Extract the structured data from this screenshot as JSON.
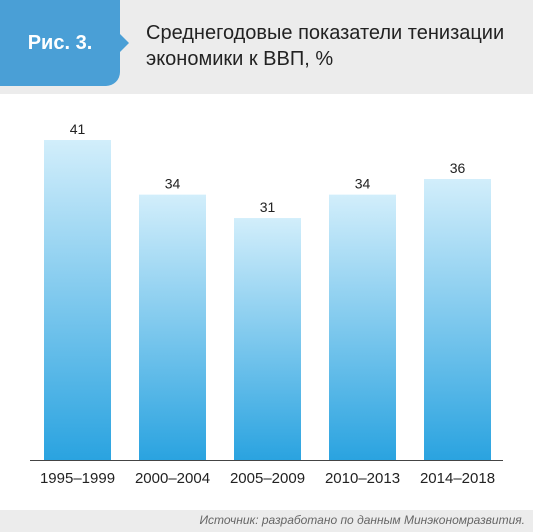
{
  "badge": {
    "label": "Рис. 3."
  },
  "title": "Среднегодовые показатели тенизации экономики к ВВП, %",
  "source": "Источник: разработано по данным Минэкономразвития.",
  "colors": {
    "badge": "#4a9fd6",
    "bar_top": "#d2eefb",
    "bar_bottom": "#2aa3e0"
  },
  "chart_data": {
    "type": "bar",
    "title": "Среднегодовые показатели тенизации экономики к ВВП, %",
    "categories": [
      "1995–1999",
      "2000–2004",
      "2005–2009",
      "2010–2013",
      "2014–2018"
    ],
    "values": [
      41,
      34,
      31,
      34,
      36
    ],
    "data_labels": [
      "41",
      "34",
      "31",
      "34",
      "36"
    ],
    "xlabel": "",
    "ylabel": "",
    "ylim": [
      0,
      41
    ],
    "grid": false,
    "legend": "none"
  }
}
